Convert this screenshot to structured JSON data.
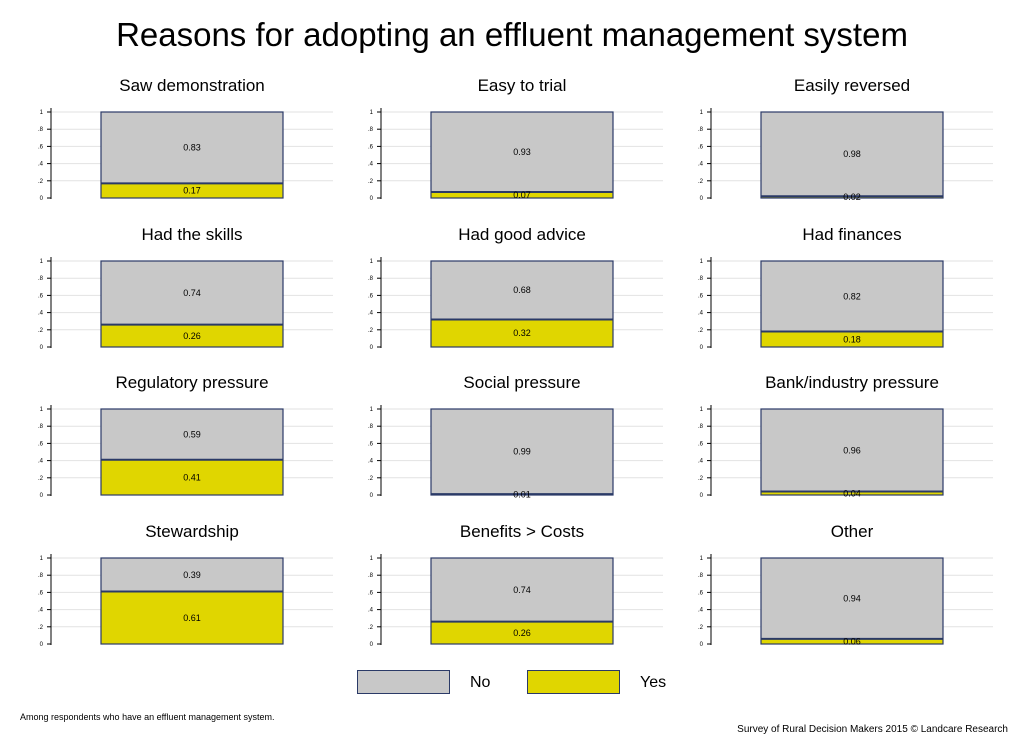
{
  "title": "Reasons for adopting an effluent management system",
  "legend": [
    {
      "label": "No",
      "color": "#c8c8c8"
    },
    {
      "label": "Yes",
      "color": "#e0d600"
    }
  ],
  "footnote": "Among respondents who have an effluent management system.",
  "source": "Survey of Rural Decision Makers 2015 © Landcare Research",
  "chart_data": {
    "type": "bar",
    "stacked": true,
    "ylim": [
      0,
      1
    ],
    "yticks": [
      "0",
      ".2",
      ".4",
      ".6",
      ".8",
      "1"
    ],
    "grid": true,
    "legend_position": "bottom",
    "panels": [
      {
        "title": "Saw demonstration",
        "no": 0.83,
        "yes": 0.17,
        "no_label": "0.83",
        "yes_label": "0.17"
      },
      {
        "title": "Easy to trial",
        "no": 0.93,
        "yes": 0.07,
        "no_label": "0.93",
        "yes_label": "0.07"
      },
      {
        "title": "Easily reversed",
        "no": 0.98,
        "yes": 0.02,
        "no_label": "0.98",
        "yes_label": "0.02"
      },
      {
        "title": "Had the skills",
        "no": 0.74,
        "yes": 0.26,
        "no_label": "0.74",
        "yes_label": "0.26"
      },
      {
        "title": "Had good advice",
        "no": 0.68,
        "yes": 0.32,
        "no_label": "0.68",
        "yes_label": "0.32"
      },
      {
        "title": "Had finances",
        "no": 0.82,
        "yes": 0.18,
        "no_label": "0.82",
        "yes_label": "0.18"
      },
      {
        "title": "Regulatory pressure",
        "no": 0.59,
        "yes": 0.41,
        "no_label": "0.59",
        "yes_label": "0.41"
      },
      {
        "title": "Social pressure",
        "no": 0.99,
        "yes": 0.01,
        "no_label": "0.99",
        "yes_label": "0.01"
      },
      {
        "title": "Bank/industry pressure",
        "no": 0.96,
        "yes": 0.04,
        "no_label": "0.96",
        "yes_label": "0.04"
      },
      {
        "title": "Stewardship",
        "no": 0.39,
        "yes": 0.61,
        "no_label": "0.39",
        "yes_label": "0.61"
      },
      {
        "title": "Benefits > Costs",
        "no": 0.74,
        "yes": 0.26,
        "no_label": "0.74",
        "yes_label": "0.26"
      },
      {
        "title": "Other",
        "no": 0.94,
        "yes": 0.06,
        "no_label": "0.94",
        "yes_label": "0.06"
      }
    ]
  }
}
